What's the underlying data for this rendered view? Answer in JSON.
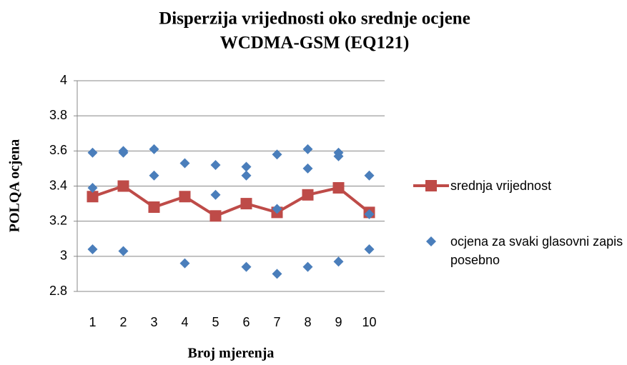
{
  "chart_data": {
    "type": "line",
    "title": [
      "Disperzija vrijednosti oko srednje ocjene",
      "WCDMA-GSM (EQ121)"
    ],
    "xlabel": "Broj mjerenja",
    "ylabel": "POLQA ocjena",
    "categories": [
      "1",
      "2",
      "3",
      "4",
      "5",
      "6",
      "7",
      "8",
      "9",
      "10"
    ],
    "ylim": [
      2.8,
      4
    ],
    "yticks": [
      2.8,
      3,
      3.2,
      3.4,
      3.6,
      3.8,
      4
    ],
    "grid": true,
    "legend": "right",
    "series": [
      {
        "name": "srednja vrijednost",
        "type": "line",
        "color": "#be4b48",
        "values": [
          3.34,
          3.4,
          3.28,
          3.34,
          3.23,
          3.3,
          3.25,
          3.35,
          3.39,
          3.25
        ]
      },
      {
        "name": "ocjena za svaki glasovni zapis posebno",
        "type": "scatter",
        "color": "#4a7ebb",
        "x": [
          1,
          1,
          1,
          2,
          2,
          2,
          3,
          3,
          4,
          4,
          5,
          5,
          6,
          6,
          6,
          7,
          7,
          7,
          8,
          8,
          8,
          9,
          9,
          9,
          10,
          10,
          10
        ],
        "values": [
          3.59,
          3.39,
          3.04,
          3.6,
          3.59,
          3.03,
          3.61,
          3.46,
          3.53,
          2.96,
          3.52,
          3.35,
          3.51,
          3.46,
          2.94,
          3.58,
          3.27,
          2.9,
          3.61,
          3.5,
          2.94,
          3.59,
          3.57,
          2.97,
          3.46,
          3.24,
          3.04
        ]
      }
    ]
  }
}
